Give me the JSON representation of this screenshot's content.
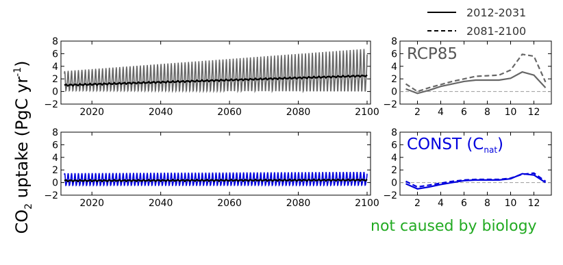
{
  "ylabel_main": "CO",
  "ylabel_sub": "2",
  "ylabel_rest": " uptake (PgC yr",
  "ylabel_sup": "-1",
  "ylabel_close": ")",
  "legend": {
    "solid_label": "2012-2031",
    "dashed_label": "2081-2100"
  },
  "annotation": "not caused by biology",
  "colors": {
    "rcp_series": "#666666",
    "rcp_mean": "#000000",
    "const_series": "#0000dd",
    "const_mean": "#000000",
    "annotation": "#22aa22",
    "zero_line": "#999999"
  },
  "chart_data": [
    {
      "id": "rcp-timeseries",
      "type": "line",
      "xlim": [
        2011,
        2101
      ],
      "ylim": [
        -2,
        8
      ],
      "xticks": [
        2020,
        2040,
        2060,
        2080,
        2100
      ],
      "yticks": [
        -2,
        0,
        2,
        4,
        6,
        8
      ],
      "x_start": 2012,
      "x_end": 2100,
      "mean_start": 1.0,
      "mean_end": 2.5,
      "amplitude_start": 1.6,
      "amplitude_end": 3.5,
      "seasonal_offset": 0.5
    },
    {
      "id": "const-timeseries",
      "type": "line",
      "xlim": [
        2011,
        2101
      ],
      "ylim": [
        -2,
        8
      ],
      "xticks": [
        2020,
        2040,
        2060,
        2080,
        2100
      ],
      "yticks": [
        -2,
        0,
        2,
        4,
        6,
        8
      ],
      "x_start": 2012,
      "x_end": 2100,
      "mean_start": 0.3,
      "mean_end": 0.4,
      "amplitude_start": 1.0,
      "amplitude_end": 1.1,
      "seasonal_offset": 0.1
    },
    {
      "id": "rcp-seasonal",
      "type": "line",
      "panel_label": "RCP85",
      "xlim": [
        0.5,
        13.5
      ],
      "ylim": [
        -2,
        8
      ],
      "xticks": [
        2,
        4,
        6,
        8,
        10,
        12
      ],
      "yticks": [
        -2,
        0,
        2,
        4,
        6,
        8
      ],
      "x": [
        1,
        2,
        3,
        4,
        5,
        6,
        7,
        8,
        9,
        10,
        11,
        12,
        13
      ],
      "series": [
        {
          "name": "2012-2031",
          "style": "solid",
          "values": [
            0.4,
            -0.3,
            0.2,
            0.8,
            1.2,
            1.6,
            1.8,
            1.8,
            1.8,
            2.1,
            3.1,
            2.6,
            0.6
          ]
        },
        {
          "name": "2081-2100",
          "style": "dashed",
          "values": [
            1.2,
            0.0,
            0.6,
            1.1,
            1.6,
            2.0,
            2.4,
            2.5,
            2.6,
            3.4,
            5.9,
            5.6,
            1.5
          ]
        }
      ]
    },
    {
      "id": "const-seasonal",
      "type": "line",
      "panel_label": "CONST (C",
      "panel_label_sub": "nat",
      "panel_label_close": ")",
      "xlim": [
        0.5,
        13.5
      ],
      "ylim": [
        -2,
        8
      ],
      "xticks": [
        2,
        4,
        6,
        8,
        10,
        12
      ],
      "yticks": [
        -2,
        0,
        2,
        4,
        6,
        8
      ],
      "x": [
        1,
        2,
        3,
        4,
        5,
        6,
        7,
        8,
        9,
        10,
        11,
        12,
        13
      ],
      "series": [
        {
          "name": "2012-2031",
          "style": "solid",
          "values": [
            -0.2,
            -1.0,
            -0.7,
            -0.3,
            0.0,
            0.3,
            0.4,
            0.4,
            0.4,
            0.6,
            1.4,
            1.2,
            0.0
          ]
        },
        {
          "name": "2081-2100",
          "style": "dashed",
          "values": [
            0.2,
            -0.7,
            -0.4,
            -0.1,
            0.2,
            0.4,
            0.5,
            0.5,
            0.5,
            0.7,
            1.3,
            1.5,
            0.2
          ]
        }
      ]
    }
  ]
}
